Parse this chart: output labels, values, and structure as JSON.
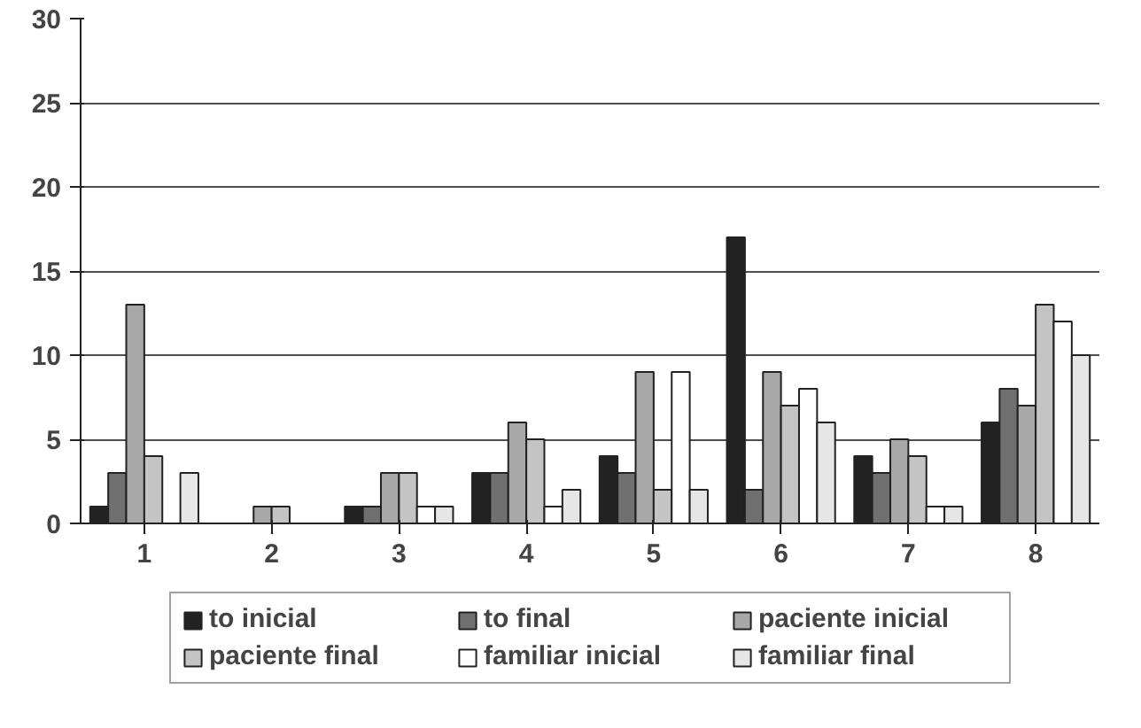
{
  "chart_data": {
    "type": "bar",
    "categories": [
      "1",
      "2",
      "3",
      "4",
      "5",
      "6",
      "7",
      "8"
    ],
    "series": [
      {
        "name": "to inicial",
        "color": "#222222",
        "values": [
          1,
          0,
          1,
          3,
          4,
          17,
          4,
          6
        ]
      },
      {
        "name": "to final",
        "color": "#707070",
        "values": [
          3,
          0,
          1,
          3,
          3,
          2,
          3,
          8
        ]
      },
      {
        "name": "paciente inicial",
        "color": "#a8a8a8",
        "values": [
          13,
          1,
          3,
          6,
          9,
          9,
          5,
          7
        ]
      },
      {
        "name": "paciente final",
        "color": "#c4c4c4",
        "values": [
          4,
          1,
          3,
          5,
          2,
          7,
          4,
          13
        ]
      },
      {
        "name": "familiar inicial",
        "color": "#ffffff",
        "values": [
          0,
          0,
          1,
          1,
          9,
          8,
          1,
          12
        ]
      },
      {
        "name": "familiar final",
        "color": "#e6e6e6",
        "values": [
          3,
          0,
          1,
          2,
          2,
          6,
          1,
          10
        ]
      }
    ],
    "ylim": [
      0,
      30
    ],
    "yticks": [
      0,
      5,
      10,
      15,
      20,
      25,
      30
    ],
    "grid": "y",
    "legend": "bottom"
  }
}
